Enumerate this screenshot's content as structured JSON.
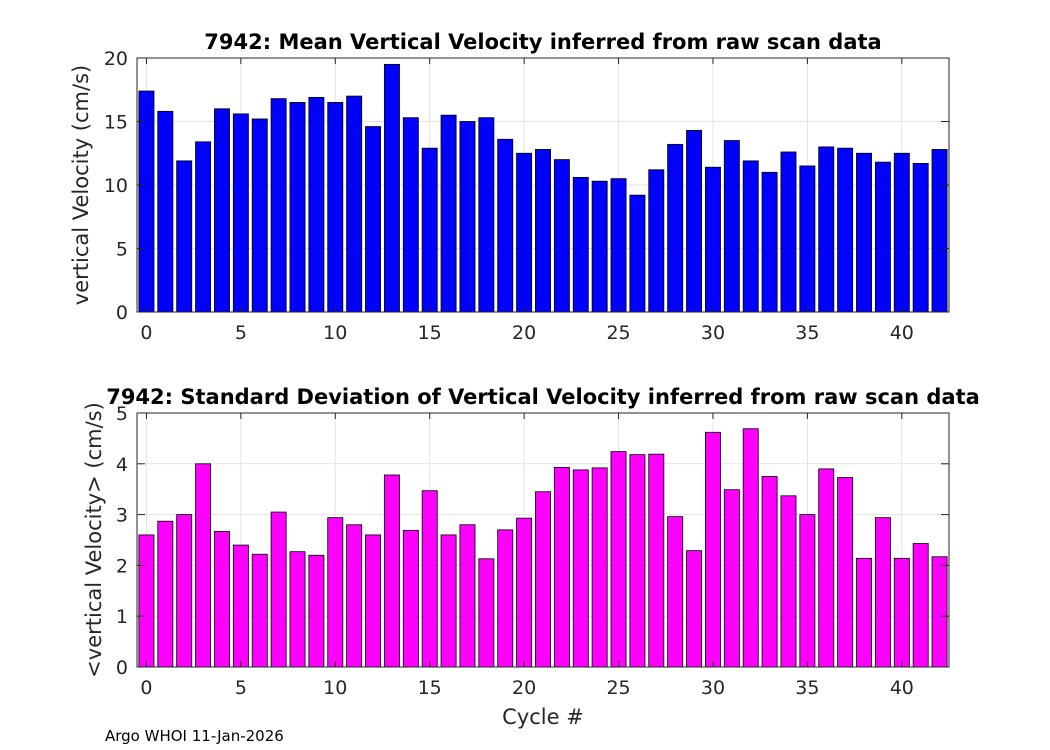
{
  "footer": "Argo WHOI 11-Jan-2026",
  "chart_data": [
    {
      "type": "bar",
      "title": "7942: Mean Vertical Velocity inferred from raw scan data",
      "xlabel": "",
      "ylabel": "vertical Velocity (cm/s)",
      "xlim": [
        -0.5,
        42.5
      ],
      "ylim": [
        0,
        20
      ],
      "xticks": [
        0,
        5,
        10,
        15,
        20,
        25,
        30,
        35,
        40
      ],
      "yticks": [
        0,
        5,
        10,
        15,
        20
      ],
      "grid": true,
      "color": "#0000ff",
      "x": [
        0,
        1,
        2,
        3,
        4,
        5,
        6,
        7,
        8,
        9,
        10,
        11,
        12,
        13,
        14,
        15,
        16,
        17,
        18,
        19,
        20,
        21,
        22,
        23,
        24,
        25,
        26,
        27,
        28,
        29,
        30,
        31,
        32,
        33,
        34,
        35,
        36,
        37,
        38,
        39,
        40,
        41,
        42
      ],
      "values": [
        17.4,
        15.8,
        11.9,
        13.4,
        16.0,
        15.6,
        15.2,
        16.8,
        16.5,
        16.9,
        16.5,
        17.0,
        14.6,
        19.5,
        15.3,
        12.9,
        15.5,
        15.0,
        15.3,
        13.6,
        12.5,
        12.8,
        12.0,
        10.6,
        10.3,
        10.5,
        9.2,
        11.2,
        13.2,
        14.3,
        11.4,
        13.5,
        11.9,
        11.0,
        12.6,
        11.5,
        13.0,
        12.9,
        12.5,
        11.8,
        12.5,
        11.7,
        12.8
      ]
    },
    {
      "type": "bar",
      "title": "7942: Standard Deviation of Vertical Velocity inferred from raw scan data",
      "xlabel": "Cycle #",
      "ylabel": "<vertical Velocity> (cm/s)",
      "xlim": [
        -0.5,
        42.5
      ],
      "ylim": [
        0,
        5
      ],
      "xticks": [
        0,
        5,
        10,
        15,
        20,
        25,
        30,
        35,
        40
      ],
      "yticks": [
        0,
        1,
        2,
        3,
        4,
        5
      ],
      "grid": true,
      "color": "#ff00ff",
      "x": [
        0,
        1,
        2,
        3,
        4,
        5,
        6,
        7,
        8,
        9,
        10,
        11,
        12,
        13,
        14,
        15,
        16,
        17,
        18,
        19,
        20,
        21,
        22,
        23,
        24,
        25,
        26,
        27,
        28,
        29,
        30,
        31,
        32,
        33,
        34,
        35,
        36,
        37,
        38,
        39,
        40,
        41,
        42
      ],
      "values": [
        2.6,
        2.87,
        3.0,
        4.0,
        2.67,
        2.4,
        2.22,
        3.05,
        2.27,
        2.2,
        2.94,
        2.8,
        2.6,
        3.78,
        2.69,
        3.47,
        2.6,
        2.8,
        2.13,
        2.7,
        2.93,
        3.45,
        3.93,
        3.88,
        3.92,
        4.24,
        4.18,
        4.19,
        2.96,
        2.29,
        4.62,
        3.49,
        4.69,
        3.75,
        3.37,
        3.0,
        3.9,
        3.73,
        2.14,
        2.94,
        2.14,
        2.43,
        2.17
      ]
    }
  ]
}
